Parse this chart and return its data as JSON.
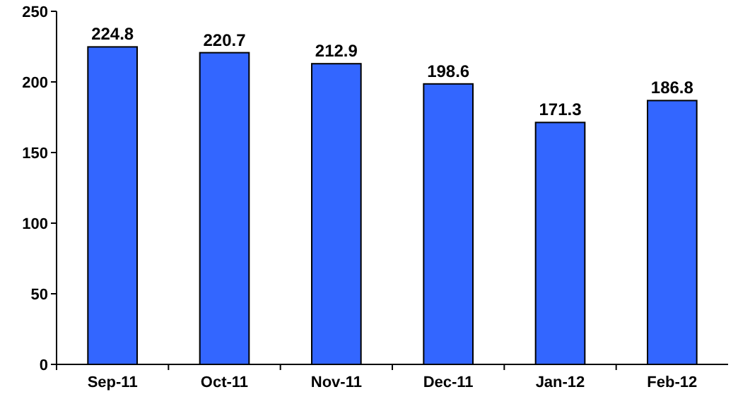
{
  "chart_data": {
    "type": "bar",
    "categories": [
      "Sep-11",
      "Oct-11",
      "Nov-11",
      "Dec-11",
      "Jan-12",
      "Feb-12"
    ],
    "values": [
      224.8,
      220.7,
      212.9,
      198.6,
      171.3,
      186.8
    ],
    "color": "#3366ff",
    "ylim": [
      0,
      250
    ],
    "yticks": [
      0,
      50,
      100,
      150,
      200,
      250
    ],
    "data_labels": true
  }
}
